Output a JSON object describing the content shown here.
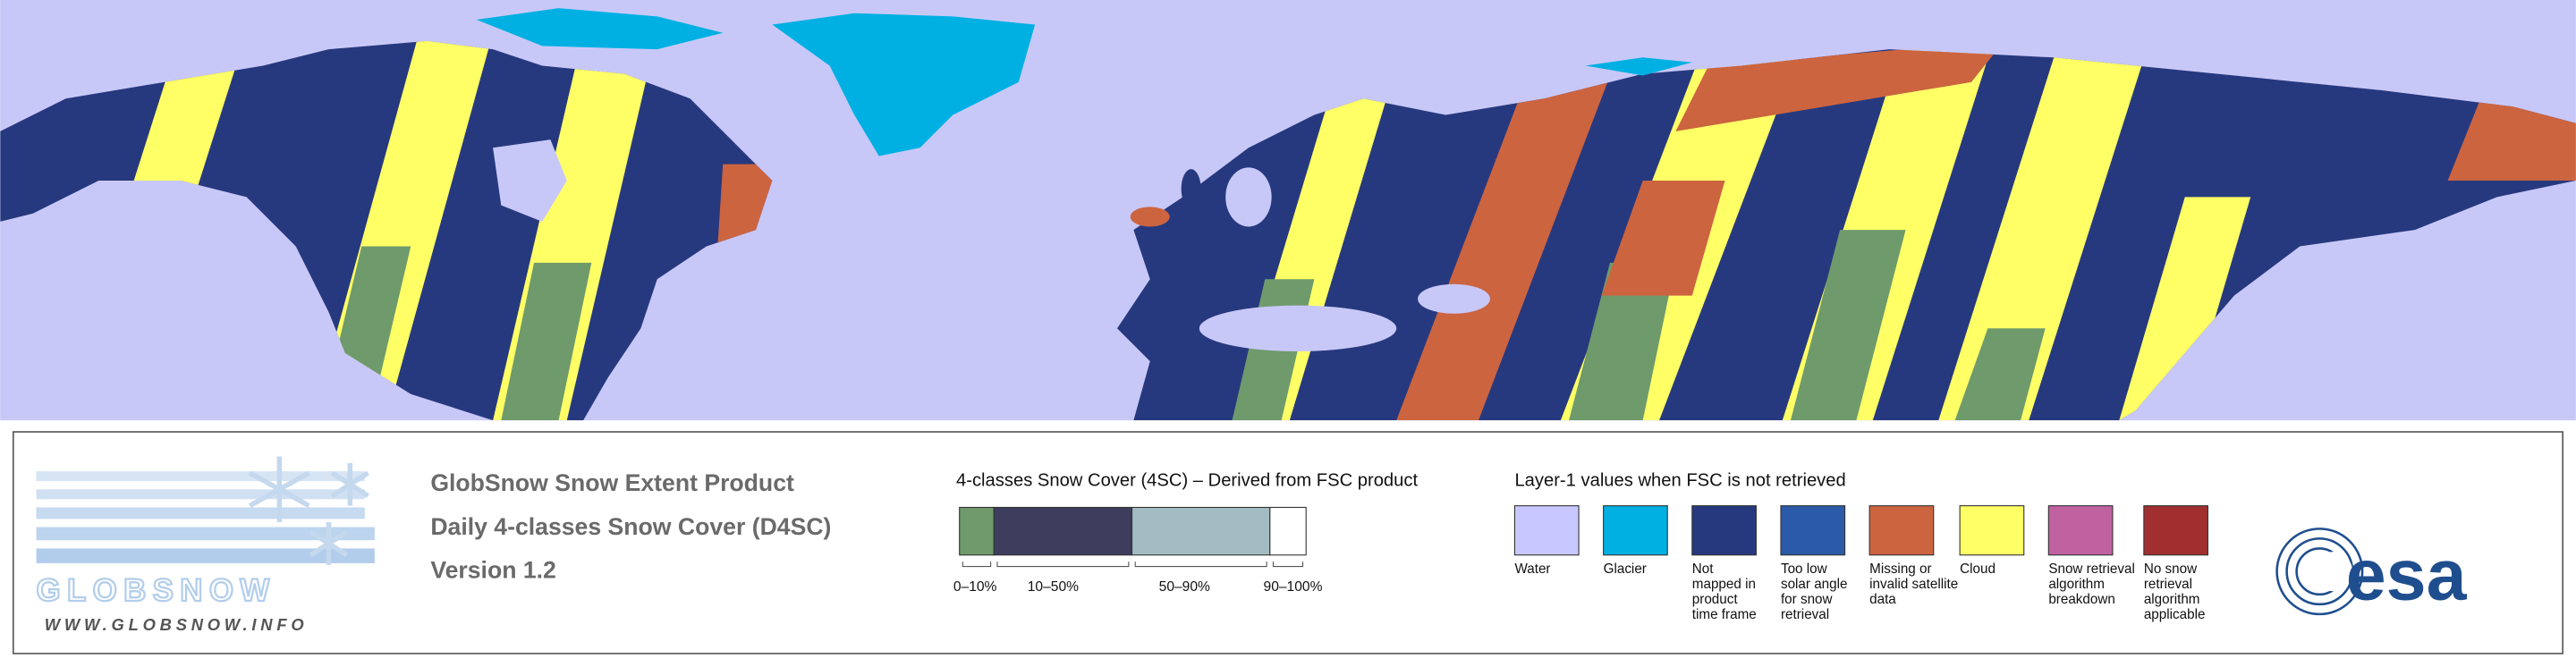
{
  "header": {
    "lines": [
      "GlobSnow Snow Extent Product",
      "Daily 4-classes Snow Cover (D4SC)",
      "Version 1.2"
    ]
  },
  "logo": {
    "name": "GLOBSNOW",
    "url": "WWW.GLOBSNOW.INFO"
  },
  "agency": {
    "name": "esa"
  },
  "snow_cover": {
    "title": "4-classes Snow Cover (4SC) – Derived from FSC product",
    "classes": [
      {
        "label": "0–10%",
        "color": "#6f9a6c"
      },
      {
        "label": "10–50%",
        "color": "#3d3d5e"
      },
      {
        "label": "50–90%",
        "color": "#a3bcc3"
      },
      {
        "label": "90–100%",
        "color": "#ffffff"
      }
    ]
  },
  "layer1": {
    "title": "Layer-1 values when FSC is not retrieved",
    "classes": [
      {
        "lines": [
          "Water"
        ],
        "color": "#c8c8ff"
      },
      {
        "lines": [
          "Glacier"
        ],
        "color": "#00b0e2"
      },
      {
        "lines": [
          "Not",
          "mapped in",
          "product",
          "time frame"
        ],
        "color": "#27397e"
      },
      {
        "lines": [
          "Too low",
          "solar angle",
          "for snow",
          "retrieval"
        ],
        "color": "#2b5ba8"
      },
      {
        "lines": [
          "Missing or",
          "invalid satellite",
          "data"
        ],
        "color": "#cc6440"
      },
      {
        "lines": [
          "Cloud"
        ],
        "color": "#ffff66"
      },
      {
        "lines": [
          "Snow retrieval",
          "algorithm",
          "breakdown"
        ],
        "color": "#c062a0"
      },
      {
        "lines": [
          "No snow",
          "retrieval",
          "algorithm",
          "applicable"
        ],
        "color": "#a22f30"
      }
    ]
  }
}
